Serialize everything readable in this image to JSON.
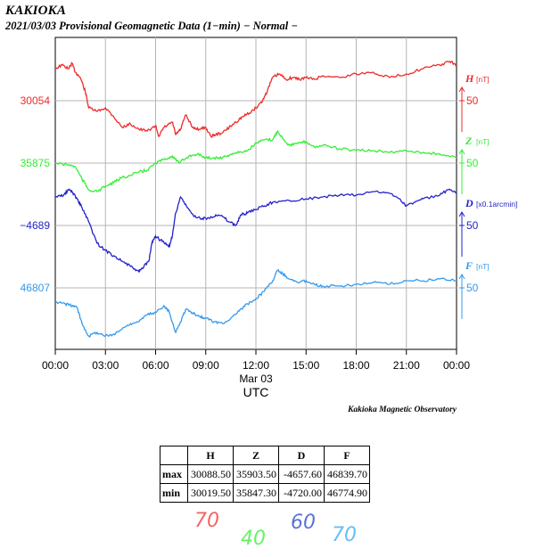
{
  "header": {
    "title": "KAKIOKA",
    "subtitle": "2021/03/03  Provisional Geomagnetic Data (1−min)  − Normal −"
  },
  "chart_data": {
    "type": "line",
    "x_range": [
      0,
      24
    ],
    "x_ticks": [
      "00:00",
      "03:00",
      "06:00",
      "09:00",
      "12:00",
      "15:00",
      "18:00",
      "21:00",
      "00:00"
    ],
    "x_date": "Mar 03",
    "xlabel": "UTC",
    "grid": true,
    "credit": "Kakioka Magnetic Observatory",
    "series": [
      {
        "name": "H",
        "unit": "[nT]",
        "color": "#ee2a2a",
        "left_label": "30054",
        "right_tick": "50",
        "points": [
          [
            0,
            -36
          ],
          [
            0.4,
            -40
          ],
          [
            0.8,
            -36
          ],
          [
            1.0,
            -42
          ],
          [
            1.2,
            -32
          ],
          [
            1.5,
            -26
          ],
          [
            1.8,
            -10
          ],
          [
            2.0,
            8
          ],
          [
            2.5,
            12
          ],
          [
            3.0,
            8
          ],
          [
            3.5,
            18
          ],
          [
            4.0,
            30
          ],
          [
            4.5,
            26
          ],
          [
            5.0,
            32
          ],
          [
            5.5,
            34
          ],
          [
            6.0,
            28
          ],
          [
            6.2,
            40
          ],
          [
            6.5,
            30
          ],
          [
            7.0,
            24
          ],
          [
            7.2,
            38
          ],
          [
            7.5,
            32
          ],
          [
            7.8,
            16
          ],
          [
            8.2,
            30
          ],
          [
            8.6,
            32
          ],
          [
            9.0,
            30
          ],
          [
            9.3,
            40
          ],
          [
            9.6,
            38
          ],
          [
            10.0,
            36
          ],
          [
            10.4,
            30
          ],
          [
            10.8,
            24
          ],
          [
            11.2,
            18
          ],
          [
            11.6,
            14
          ],
          [
            12.0,
            8
          ],
          [
            12.4,
            0
          ],
          [
            12.7,
            -12
          ],
          [
            13.0,
            -26
          ],
          [
            13.4,
            -30
          ],
          [
            13.8,
            -24
          ],
          [
            14.2,
            -26
          ],
          [
            14.6,
            -24
          ],
          [
            15.0,
            -26
          ],
          [
            15.5,
            -24
          ],
          [
            16.0,
            -28
          ],
          [
            17.0,
            -26
          ],
          [
            18.0,
            -30
          ],
          [
            19.0,
            -32
          ],
          [
            20.0,
            -26
          ],
          [
            21.0,
            -30
          ],
          [
            22.0,
            -36
          ],
          [
            23.0,
            -40
          ],
          [
            23.6,
            -44
          ],
          [
            24.0,
            -40
          ]
        ]
      },
      {
        "name": "Z",
        "unit": "[nT]",
        "color": "#33ee33",
        "left_label": "35875",
        "right_tick": "50",
        "points": [
          [
            0,
            0
          ],
          [
            0.8,
            2
          ],
          [
            1.2,
            4
          ],
          [
            1.6,
            18
          ],
          [
            2.0,
            30
          ],
          [
            2.5,
            32
          ],
          [
            3.0,
            26
          ],
          [
            3.5,
            22
          ],
          [
            4.0,
            16
          ],
          [
            4.5,
            14
          ],
          [
            5.0,
            10
          ],
          [
            5.5,
            8
          ],
          [
            6.0,
            0
          ],
          [
            6.5,
            -4
          ],
          [
            7.0,
            -8
          ],
          [
            7.4,
            0
          ],
          [
            8.0,
            -8
          ],
          [
            8.5,
            -10
          ],
          [
            9.0,
            -6
          ],
          [
            9.5,
            -6
          ],
          [
            10.0,
            -6
          ],
          [
            10.5,
            -10
          ],
          [
            11.0,
            -12
          ],
          [
            11.5,
            -14
          ],
          [
            12.0,
            -22
          ],
          [
            12.5,
            -26
          ],
          [
            13.0,
            -26
          ],
          [
            13.3,
            -36
          ],
          [
            13.6,
            -28
          ],
          [
            14.0,
            -20
          ],
          [
            14.5,
            -22
          ],
          [
            15.0,
            -24
          ],
          [
            15.5,
            -18
          ],
          [
            16.0,
            -20
          ],
          [
            17.0,
            -16
          ],
          [
            18.0,
            -14
          ],
          [
            19.0,
            -14
          ],
          [
            20.0,
            -12
          ],
          [
            21.0,
            -14
          ],
          [
            22.0,
            -12
          ],
          [
            23.0,
            -10
          ],
          [
            24.0,
            -6
          ]
        ]
      },
      {
        "name": "D",
        "unit": "[x0.1arcmin]",
        "color": "#2222cc",
        "left_label": "−4689",
        "right_tick": "50",
        "points": [
          [
            0,
            -32
          ],
          [
            0.5,
            -34
          ],
          [
            0.8,
            -40
          ],
          [
            1.0,
            -38
          ],
          [
            1.3,
            -30
          ],
          [
            1.6,
            -20
          ],
          [
            2.0,
            -4
          ],
          [
            2.5,
            20
          ],
          [
            3.0,
            28
          ],
          [
            3.5,
            34
          ],
          [
            4.0,
            40
          ],
          [
            4.5,
            46
          ],
          [
            5.0,
            52
          ],
          [
            5.2,
            48
          ],
          [
            5.6,
            40
          ],
          [
            5.8,
            18
          ],
          [
            6.0,
            12
          ],
          [
            6.4,
            18
          ],
          [
            6.8,
            24
          ],
          [
            7.0,
            12
          ],
          [
            7.2,
            -14
          ],
          [
            7.5,
            -32
          ],
          [
            7.9,
            -20
          ],
          [
            8.3,
            -10
          ],
          [
            8.8,
            -8
          ],
          [
            9.2,
            -8
          ],
          [
            9.6,
            -12
          ],
          [
            10.0,
            -10
          ],
          [
            10.4,
            -4
          ],
          [
            10.8,
            0
          ],
          [
            11.1,
            -12
          ],
          [
            11.5,
            -14
          ],
          [
            12.0,
            -18
          ],
          [
            12.5,
            -22
          ],
          [
            13.0,
            -26
          ],
          [
            14.0,
            -28
          ],
          [
            15.0,
            -30
          ],
          [
            16.0,
            -32
          ],
          [
            17.0,
            -34
          ],
          [
            18.0,
            -34
          ],
          [
            19.0,
            -38
          ],
          [
            20.0,
            -36
          ],
          [
            20.6,
            -30
          ],
          [
            21.0,
            -22
          ],
          [
            21.5,
            -26
          ],
          [
            22.0,
            -30
          ],
          [
            23.0,
            -34
          ],
          [
            23.5,
            -40
          ],
          [
            24.0,
            -36
          ]
        ]
      },
      {
        "name": "F",
        "unit": "[nT]",
        "color": "#3399ee",
        "left_label": "46807",
        "right_tick": "50",
        "points": [
          [
            0,
            16
          ],
          [
            0.6,
            18
          ],
          [
            1.0,
            20
          ],
          [
            1.3,
            22
          ],
          [
            1.6,
            40
          ],
          [
            2.0,
            54
          ],
          [
            2.5,
            50
          ],
          [
            3.0,
            54
          ],
          [
            3.5,
            52
          ],
          [
            4.0,
            46
          ],
          [
            4.5,
            40
          ],
          [
            5.0,
            38
          ],
          [
            5.5,
            30
          ],
          [
            6.0,
            28
          ],
          [
            6.5,
            20
          ],
          [
            6.8,
            26
          ],
          [
            7.2,
            50
          ],
          [
            7.5,
            38
          ],
          [
            7.8,
            24
          ],
          [
            8.2,
            28
          ],
          [
            8.6,
            32
          ],
          [
            9.0,
            34
          ],
          [
            9.5,
            38
          ],
          [
            10.0,
            40
          ],
          [
            10.5,
            34
          ],
          [
            11.0,
            26
          ],
          [
            11.5,
            18
          ],
          [
            12.0,
            12
          ],
          [
            12.5,
            4
          ],
          [
            13.0,
            -8
          ],
          [
            13.3,
            -20
          ],
          [
            13.6,
            -16
          ],
          [
            14.0,
            -10
          ],
          [
            14.5,
            -6
          ],
          [
            15.0,
            -8
          ],
          [
            15.5,
            -4
          ],
          [
            16.0,
            -2
          ],
          [
            17.0,
            -2
          ],
          [
            18.0,
            -4
          ],
          [
            19.0,
            -6
          ],
          [
            20.0,
            -4
          ],
          [
            21.0,
            -8
          ],
          [
            22.0,
            -8
          ],
          [
            23.0,
            -10
          ],
          [
            24.0,
            -8
          ]
        ]
      }
    ]
  },
  "stats": {
    "columns": [
      "H",
      "Z",
      "D",
      "F"
    ],
    "rows": [
      {
        "label": "max",
        "values": [
          "30088.50",
          "35903.50",
          "-4657.60",
          "46839.70"
        ]
      },
      {
        "label": "min",
        "values": [
          "30019.50",
          "35847.30",
          "-4720.00",
          "46774.90"
        ]
      }
    ]
  },
  "scales": [
    {
      "value": "70",
      "color": "#ee3333"
    },
    {
      "value": "40",
      "color": "#33ee33"
    },
    {
      "value": "60",
      "color": "#2244cc"
    },
    {
      "value": "70",
      "color": "#33aaee"
    }
  ]
}
